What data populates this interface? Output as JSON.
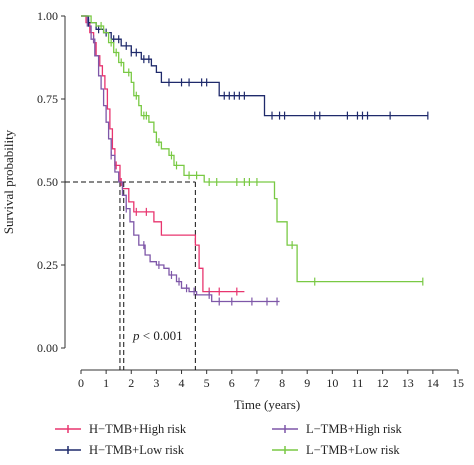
{
  "chart_data": {
    "type": "line",
    "subtype": "kaplan-meier",
    "xlabel": "Time (years)",
    "ylabel": "Survival probability",
    "xlim": [
      0,
      15
    ],
    "ylim": [
      0,
      1
    ],
    "xticks": [
      0,
      1,
      2,
      3,
      4,
      5,
      6,
      7,
      8,
      9,
      10,
      11,
      12,
      13,
      14,
      15
    ],
    "yticks": [
      "0.00",
      "0.25",
      "0.50",
      "0.75",
      "1.00"
    ],
    "grid": false,
    "legend_position": "bottom",
    "annotation": {
      "p_label": "p",
      "p_rest": " < 0.001"
    },
    "median_reference": {
      "y": 0.5,
      "medians": [
        1.55,
        1.7,
        4.55
      ]
    },
    "series": [
      {
        "name": "H−TMB+High risk",
        "color": "#e8356f",
        "steps": [
          [
            0,
            1
          ],
          [
            0.2,
            0.98
          ],
          [
            0.35,
            0.95
          ],
          [
            0.5,
            0.92
          ],
          [
            0.6,
            0.88
          ],
          [
            0.75,
            0.85
          ],
          [
            0.85,
            0.82
          ],
          [
            0.95,
            0.78
          ],
          [
            1.05,
            0.72
          ],
          [
            1.15,
            0.66
          ],
          [
            1.25,
            0.6
          ],
          [
            1.35,
            0.55
          ],
          [
            1.55,
            0.5
          ],
          [
            1.65,
            0.48
          ],
          [
            1.9,
            0.44
          ],
          [
            2.1,
            0.41
          ],
          [
            2.9,
            0.38
          ],
          [
            3.2,
            0.34
          ],
          [
            4.55,
            0.31
          ],
          [
            4.7,
            0.24
          ],
          [
            4.85,
            0.17
          ],
          [
            6.5,
            0.17
          ]
        ],
        "censors": [
          [
            1.4,
            0.53
          ],
          [
            1.6,
            0.5
          ],
          [
            2.2,
            0.41
          ],
          [
            2.6,
            0.41
          ],
          [
            5.1,
            0.17
          ],
          [
            5.5,
            0.17
          ],
          [
            6.2,
            0.17
          ]
        ]
      },
      {
        "name": "L−TMB+High risk",
        "color": "#7e57a8",
        "steps": [
          [
            0,
            1
          ],
          [
            0.25,
            0.97
          ],
          [
            0.4,
            0.93
          ],
          [
            0.55,
            0.88
          ],
          [
            0.7,
            0.82
          ],
          [
            0.8,
            0.78
          ],
          [
            0.9,
            0.73
          ],
          [
            1.0,
            0.68
          ],
          [
            1.1,
            0.63
          ],
          [
            1.2,
            0.58
          ],
          [
            1.35,
            0.53
          ],
          [
            1.5,
            0.5
          ],
          [
            1.65,
            0.46
          ],
          [
            1.8,
            0.42
          ],
          [
            1.95,
            0.38
          ],
          [
            2.1,
            0.34
          ],
          [
            2.3,
            0.31
          ],
          [
            2.55,
            0.28
          ],
          [
            2.75,
            0.26
          ],
          [
            3.0,
            0.25
          ],
          [
            3.3,
            0.24
          ],
          [
            3.5,
            0.22
          ],
          [
            3.8,
            0.2
          ],
          [
            4.0,
            0.18
          ],
          [
            4.3,
            0.17
          ],
          [
            4.6,
            0.16
          ],
          [
            5.2,
            0.14
          ],
          [
            7.9,
            0.14
          ]
        ],
        "censors": [
          [
            0.5,
            0.9
          ],
          [
            1.2,
            0.58
          ],
          [
            1.8,
            0.42
          ],
          [
            2.5,
            0.28
          ],
          [
            3.1,
            0.25
          ],
          [
            3.6,
            0.22
          ],
          [
            3.9,
            0.2
          ],
          [
            4.2,
            0.17
          ],
          [
            4.5,
            0.16
          ],
          [
            5.1,
            0.14
          ],
          [
            5.5,
            0.14
          ],
          [
            6.0,
            0.14
          ],
          [
            6.8,
            0.14
          ],
          [
            7.4,
            0.14
          ],
          [
            7.8,
            0.14
          ]
        ]
      },
      {
        "name": "H−TMB+Low risk",
        "color": "#1f2a6b",
        "steps": [
          [
            0,
            1
          ],
          [
            0.3,
            0.98
          ],
          [
            0.6,
            0.96
          ],
          [
            0.9,
            0.95
          ],
          [
            1.2,
            0.93
          ],
          [
            1.6,
            0.91
          ],
          [
            2.0,
            0.89
          ],
          [
            2.4,
            0.87
          ],
          [
            2.8,
            0.85
          ],
          [
            3.0,
            0.83
          ],
          [
            3.2,
            0.8
          ],
          [
            5.2,
            0.8
          ],
          [
            5.5,
            0.76
          ],
          [
            7.2,
            0.76
          ],
          [
            7.3,
            0.7
          ],
          [
            13.8,
            0.7
          ]
        ],
        "censors": [
          [
            0.3,
            0.98
          ],
          [
            0.7,
            0.96
          ],
          [
            1.0,
            0.95
          ],
          [
            1.3,
            0.93
          ],
          [
            1.5,
            0.92
          ],
          [
            1.8,
            0.9
          ],
          [
            2.0,
            0.89
          ],
          [
            2.2,
            0.88
          ],
          [
            2.5,
            0.87
          ],
          [
            2.7,
            0.86
          ],
          [
            3.5,
            0.8
          ],
          [
            4.0,
            0.8
          ],
          [
            4.3,
            0.8
          ],
          [
            4.8,
            0.8
          ],
          [
            5.0,
            0.8
          ],
          [
            5.7,
            0.76
          ],
          [
            5.9,
            0.76
          ],
          [
            6.1,
            0.76
          ],
          [
            6.3,
            0.76
          ],
          [
            6.5,
            0.76
          ],
          [
            7.6,
            0.7
          ],
          [
            7.9,
            0.7
          ],
          [
            8.1,
            0.7
          ],
          [
            9.3,
            0.7
          ],
          [
            9.5,
            0.7
          ],
          [
            10.6,
            0.7
          ],
          [
            11.0,
            0.7
          ],
          [
            11.2,
            0.7
          ],
          [
            11.4,
            0.7
          ],
          [
            12.3,
            0.7
          ],
          [
            13.8,
            0.7
          ]
        ]
      },
      {
        "name": "L−TMB+Low risk",
        "color": "#79c944",
        "steps": [
          [
            0,
            1
          ],
          [
            0.4,
            0.98
          ],
          [
            0.6,
            0.97
          ],
          [
            0.9,
            0.95
          ],
          [
            1.1,
            0.92
          ],
          [
            1.3,
            0.89
          ],
          [
            1.5,
            0.86
          ],
          [
            1.7,
            0.83
          ],
          [
            2.0,
            0.8
          ],
          [
            2.1,
            0.76
          ],
          [
            2.3,
            0.73
          ],
          [
            2.4,
            0.7
          ],
          [
            2.7,
            0.68
          ],
          [
            2.9,
            0.65
          ],
          [
            3.0,
            0.62
          ],
          [
            3.2,
            0.6
          ],
          [
            3.5,
            0.58
          ],
          [
            3.7,
            0.55
          ],
          [
            4.1,
            0.52
          ],
          [
            4.9,
            0.5
          ],
          [
            7.6,
            0.5
          ],
          [
            7.7,
            0.45
          ],
          [
            7.8,
            0.38
          ],
          [
            8.2,
            0.31
          ],
          [
            8.6,
            0.2
          ],
          [
            13.6,
            0.2
          ]
        ],
        "censors": [
          [
            0.8,
            0.96
          ],
          [
            1.2,
            0.9
          ],
          [
            1.4,
            0.88
          ],
          [
            1.6,
            0.85
          ],
          [
            1.9,
            0.81
          ],
          [
            2.2,
            0.74
          ],
          [
            2.5,
            0.7
          ],
          [
            2.6,
            0.69
          ],
          [
            3.1,
            0.61
          ],
          [
            3.6,
            0.56
          ],
          [
            3.8,
            0.55
          ],
          [
            4.3,
            0.52
          ],
          [
            4.6,
            0.52
          ],
          [
            5.1,
            0.5
          ],
          [
            5.4,
            0.5
          ],
          [
            6.2,
            0.5
          ],
          [
            6.5,
            0.5
          ],
          [
            6.7,
            0.5
          ],
          [
            7.0,
            0.5
          ],
          [
            8.4,
            0.31
          ],
          [
            9.3,
            0.2
          ],
          [
            13.6,
            0.2
          ]
        ]
      }
    ],
    "legend_order": [
      0,
      1,
      2,
      3
    ]
  }
}
